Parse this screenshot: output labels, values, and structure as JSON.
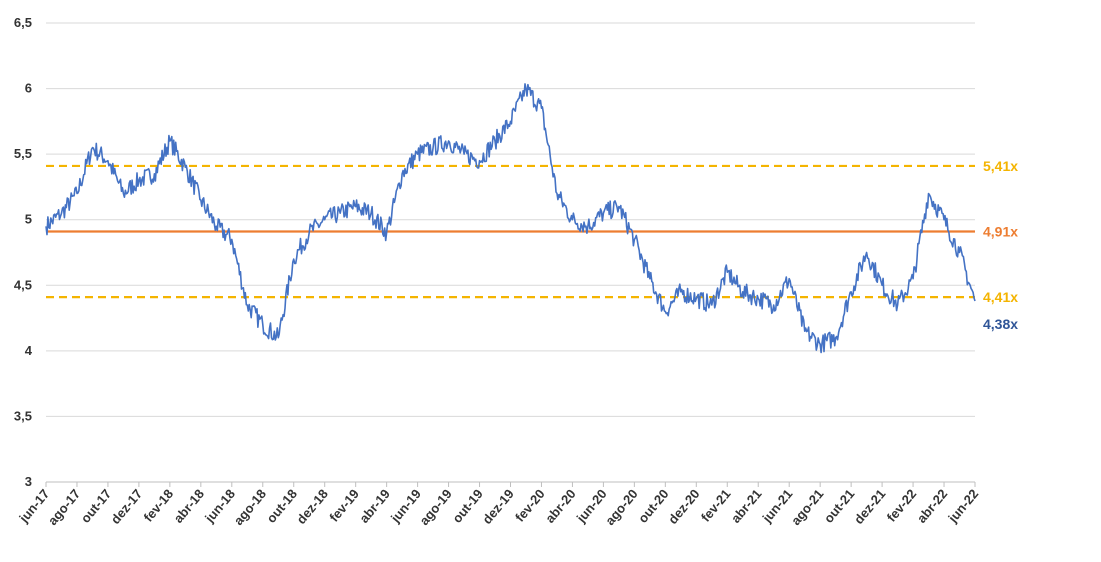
{
  "chart_data": {
    "type": "line",
    "title": "",
    "xlabel": "",
    "ylabel": "",
    "ylim": [
      3,
      6.5
    ],
    "yticks": [
      "3",
      "3,5",
      "4",
      "4,5",
      "5",
      "5,5",
      "6",
      "6,5"
    ],
    "grid": true,
    "legend": "none",
    "x_labels": [
      "jun-17",
      "ago-17",
      "out-17",
      "dez-17",
      "fev-18",
      "abr-18",
      "jun-18",
      "ago-18",
      "out-18",
      "dez-18",
      "fev-19",
      "abr-19",
      "jun-19",
      "ago-19",
      "out-19",
      "dez-19",
      "fev-20",
      "abr-20",
      "jun-20",
      "ago-20",
      "out-20",
      "dez-20",
      "fev-21",
      "abr-21",
      "jun-21",
      "ago-21",
      "out-21",
      "dez-21",
      "fev-22",
      "abr-22",
      "jun-22"
    ],
    "series": [
      {
        "name": "",
        "color": "#4472C4",
        "x": [
          "2017-06",
          "2017-07",
          "2017-08",
          "2017-09",
          "2017-10",
          "2017-11",
          "2017-12",
          "2018-01",
          "2018-02",
          "2018-03",
          "2018-04",
          "2018-05",
          "2018-06",
          "2018-07",
          "2018-08",
          "2018-09",
          "2018-10",
          "2018-11",
          "2018-12",
          "2019-01",
          "2019-02",
          "2019-03",
          "2019-04",
          "2019-05",
          "2019-06",
          "2019-07",
          "2019-08",
          "2019-09",
          "2019-10",
          "2019-11",
          "2019-12",
          "2020-01",
          "2020-02",
          "2020-03",
          "2020-04",
          "2020-05",
          "2020-06",
          "2020-07",
          "2020-08",
          "2020-09",
          "2020-10",
          "2020-11",
          "2020-12",
          "2021-01",
          "2021-02",
          "2021-03",
          "2021-04",
          "2021-05",
          "2021-06",
          "2021-07",
          "2021-08",
          "2021-09",
          "2021-10",
          "2021-11",
          "2021-12",
          "2022-01",
          "2022-02",
          "2022-03",
          "2022-04",
          "2022-05",
          "2022-06"
        ],
        "values": [
          4.95,
          5.05,
          5.2,
          5.55,
          5.45,
          5.2,
          5.3,
          5.35,
          5.6,
          5.4,
          5.15,
          4.95,
          4.85,
          4.35,
          4.2,
          4.1,
          4.7,
          4.9,
          5.0,
          5.05,
          5.1,
          5.05,
          4.9,
          5.35,
          5.5,
          5.55,
          5.6,
          5.5,
          5.45,
          5.6,
          5.75,
          6.0,
          5.85,
          5.2,
          5.0,
          4.95,
          5.05,
          5.1,
          4.85,
          4.55,
          4.3,
          4.45,
          4.4,
          4.35,
          4.6,
          4.45,
          4.4,
          4.35,
          4.55,
          4.15,
          4.05,
          4.1,
          4.45,
          4.75,
          4.5,
          4.35,
          4.55,
          5.2,
          5.0,
          4.75,
          4.38
        ]
      }
    ],
    "reference_lines": [
      {
        "value": 5.41,
        "label": "5,41x",
        "color": "#F4B400",
        "style": "dashed"
      },
      {
        "value": 4.91,
        "label": "4,91x",
        "color": "#ED7D31",
        "style": "solid"
      },
      {
        "value": 4.41,
        "label": "4,41x",
        "color": "#F4B400",
        "style": "dashed"
      }
    ],
    "last_value_label": {
      "label": "4,38x",
      "color": "#2F5597"
    }
  }
}
